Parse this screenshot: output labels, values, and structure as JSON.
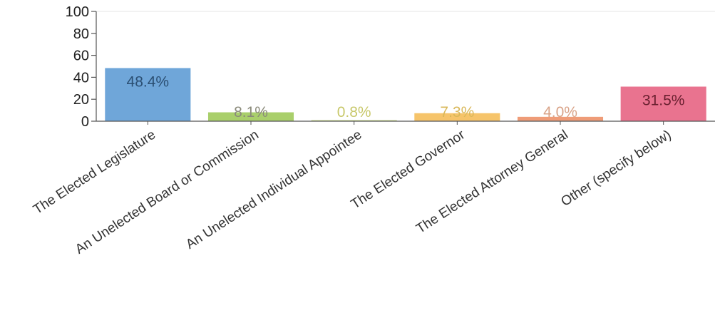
{
  "chart_data": {
    "type": "bar",
    "categories": [
      "The Elected Legislature",
      "An Unelected Board or Commission",
      "An Unelected Individual Appointee",
      "The Elected Governor",
      "The Elected Attorney General",
      "Other (specify below)"
    ],
    "values": [
      48.4,
      8.1,
      0.8,
      7.3,
      4.0,
      31.5
    ],
    "data_labels": [
      "48.4%",
      "8.1%",
      "0.8%",
      "7.3%",
      "4.0%",
      "31.5%"
    ],
    "bar_colors": [
      "#6fa6d9",
      "#a9cf6b",
      "#c9d88a",
      "#f6c46a",
      "#ef9c78",
      "#e9738f"
    ],
    "label_colors": [
      "#2b4f73",
      "#8a8a7a",
      "#c8c86a",
      "#d9b85a",
      "#d9a388",
      "#6a2030"
    ],
    "ylim": [
      0,
      100
    ],
    "yticks": [
      "0",
      "20",
      "40",
      "60",
      "80",
      "100"
    ],
    "title": "",
    "xlabel": "",
    "ylabel": "",
    "grid": false,
    "legend": "none"
  }
}
